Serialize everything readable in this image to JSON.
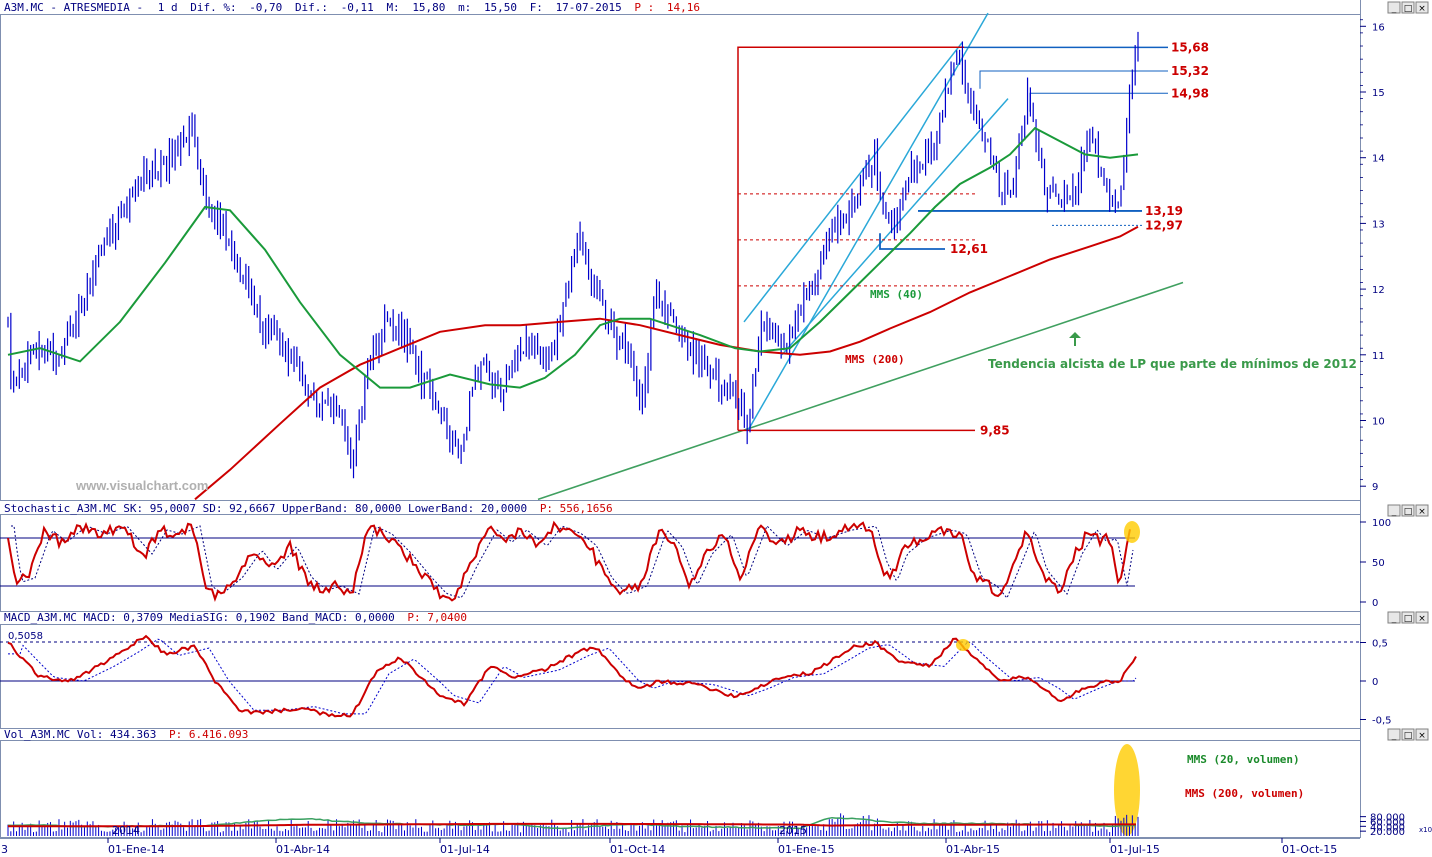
{
  "colors": {
    "price": "#0000cc",
    "mms40": "#1a9a3a",
    "mms200": "#cc0000",
    "trend_lp": "#40a060",
    "channel": "#2aa8d8",
    "levels": "#1060c0",
    "axis_text": "#000080",
    "highlight": "#ffcc00"
  },
  "main_panel": {
    "header": {
      "symbol": "A3M.MC - ATRESMEDIA -",
      "period": "1 d",
      "dif_pct_label": "Dif. %:",
      "dif_pct": "-0,70",
      "dif_label": "Dif.:",
      "dif": "-0,11",
      "max_label": "M:",
      "max": "15,80",
      "min_label": "m:",
      "min": "15,50",
      "date_label": "F:",
      "date": "17-07-2015",
      "last_label": "P :",
      "last": "14,16"
    },
    "y_ticks": [
      "16",
      "15",
      "14",
      "13",
      "12",
      "11",
      "10",
      "9"
    ],
    "levels": [
      "15,68",
      "15,32",
      "14,98",
      "13,19",
      "12,97",
      "12,61",
      "9,85"
    ],
    "annotations": {
      "mms40": "MMS (40)",
      "mms200": "MMS (200)",
      "trend": "Tendencia alcista de LP que parte de mínimos de 2012",
      "watermark": "www.visualchart.com"
    }
  },
  "stochastic_panel": {
    "header": "Stochastic_A3M.MC SK: 95,0007 SD: 92,6667 UpperBand: 80,0000 LowerBand: 20,0000",
    "header_last": "P: 556,1656",
    "y_ticks": [
      "100",
      "50",
      "0"
    ]
  },
  "macd_panel": {
    "header": "MACD_A3M.MC MACD: 0,3709 MediaSIG: 0,1902 Band_MACD: 0,0000",
    "header_last": "P: 7,0400",
    "level_label": "0,5058",
    "y_ticks": [
      "0,5",
      "0",
      "-0,5"
    ]
  },
  "volume_panel": {
    "header": "Vol_A3M.MC Vol: 434.363",
    "header_last": "P: 6.416.093",
    "y_ticks": [
      "80.000",
      "60.000",
      "40.000",
      "20.000"
    ],
    "scale": "x10",
    "mms20": "MMS (20, volumen)",
    "mms200": "MMS (200, volumen)",
    "year_labels": [
      "2014",
      "2015"
    ]
  },
  "x_axis": {
    "first": "3",
    "labels": [
      "01-Ene-14",
      "01-Abr-14",
      "01-Jul-14",
      "01-Oct-14",
      "01-Ene-15",
      "01-Abr-15",
      "01-Jul-15",
      "01-Oct-15"
    ]
  },
  "window_buttons": [
    "_",
    "□",
    "×"
  ],
  "chart_data": [
    {
      "type": "line",
      "title": "A3M.MC - ATRESMEDIA",
      "x": [
        "01-Ene-14",
        "01-Abr-14",
        "01-Jul-14",
        "01-Oct-14",
        "01-Ene-15",
        "01-Abr-15",
        "01-Jul-15"
      ],
      "series": [
        {
          "name": "A3M.MC",
          "values": [
            11.4,
            10.1,
            10.8,
            10.6,
            11.2,
            14.5,
            15.68
          ]
        },
        {
          "name": "MMS (40)",
          "values": [
            11.3,
            12.3,
            10.6,
            11.4,
            11.5,
            14.0,
            14.05
          ]
        },
        {
          "name": "MMS (200)",
          "values": [
            8.0,
            10.0,
            11.05,
            11.4,
            11.05,
            12.1,
            12.9
          ]
        }
      ],
      "levels": [
        15.68,
        15.32,
        14.98,
        13.19,
        12.97,
        12.61,
        9.85
      ],
      "ylim": [
        8.8,
        16.2
      ]
    },
    {
      "type": "line",
      "title": "Stochastic_A3M.MC",
      "series": [
        {
          "name": "SK",
          "last": 95.0007
        },
        {
          "name": "SD",
          "last": 92.6667
        }
      ],
      "bands": [
        80,
        20
      ],
      "ylim": [
        0,
        100
      ]
    },
    {
      "type": "line",
      "title": "MACD_A3M.MC",
      "series": [
        {
          "name": "MACD",
          "last": 0.3709
        },
        {
          "name": "MediaSIG",
          "last": 0.1902
        }
      ],
      "band": 0.0,
      "level": 0.5058,
      "ylim": [
        -0.5,
        0.6
      ]
    },
    {
      "type": "bar",
      "title": "Vol_A3M.MC",
      "last": 434363,
      "mms20_end": 44000,
      "mms200_end": 48000,
      "ylim": [
        0,
        90000
      ]
    }
  ]
}
